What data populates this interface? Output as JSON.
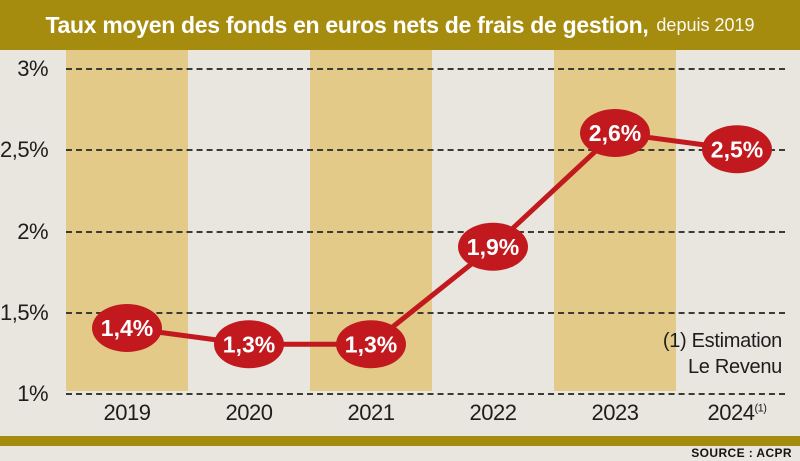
{
  "header": {
    "title": "Taux moyen des fonds en euros nets de frais de gestion,",
    "title_suffix": "depuis 2019"
  },
  "annotation": {
    "line1": "(1) Estimation",
    "line2": "Le Revenu"
  },
  "footer": {
    "source": "SOURCE : ACPR"
  },
  "colors": {
    "gold_dark": "#a68c0e",
    "band_tan": "#e3ca88",
    "background": "#e9e6df",
    "accent_red": "#c2191f",
    "text_dark": "#1d1d1b",
    "label_white": "#ffffff"
  },
  "chart_data": {
    "type": "line",
    "title": "Taux moyen des fonds en euros nets de frais de gestion, depuis 2019",
    "categories": [
      "2019",
      "2020",
      "2021",
      "2022",
      "2023",
      "2024"
    ],
    "category_sups": [
      "",
      "",
      "",
      "",
      "",
      "(1)"
    ],
    "values": [
      1.4,
      1.3,
      1.3,
      1.9,
      2.6,
      2.5
    ],
    "value_labels": [
      "1,4%",
      "1,3%",
      "1,3%",
      "1,9%",
      "2,6%",
      "2,5%"
    ],
    "unit": "%",
    "ylim": [
      1,
      3
    ],
    "yticks": [
      3,
      2.5,
      2,
      1.5,
      1
    ],
    "ytick_labels": [
      "3%",
      "2,5%",
      "2%",
      "1,5%",
      "1%"
    ],
    "grid": "horizontal dashed lines at each y tick",
    "legend": "none",
    "banding": "alternating tan/grey vertical column bands per year",
    "annotation": "(1) Estimation Le Revenu",
    "source": "ACPR"
  }
}
